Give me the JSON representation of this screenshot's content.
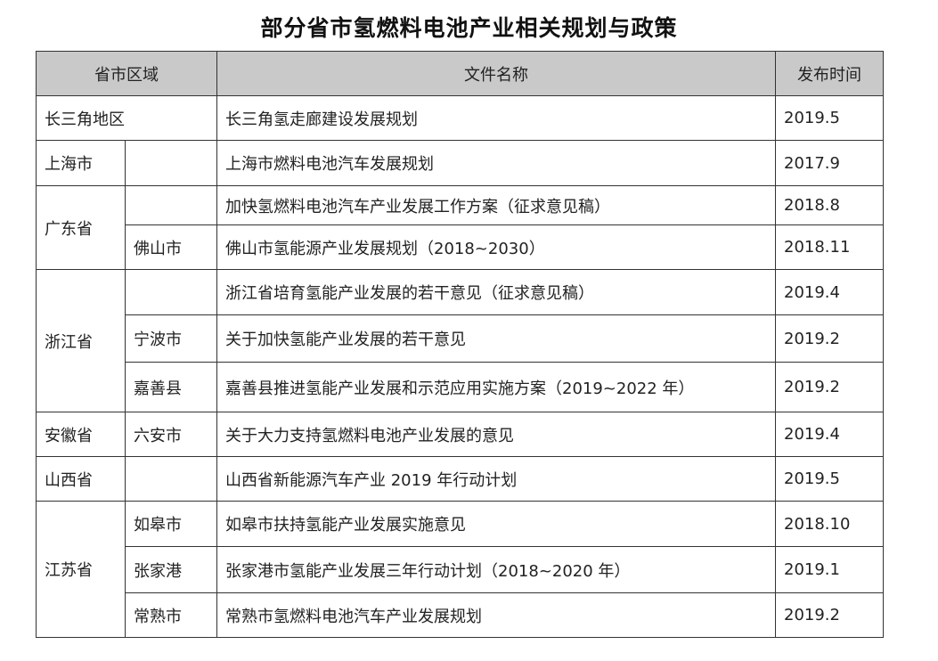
{
  "title": "部分省市氢燃料电池产业相关规划与政策",
  "headers": {
    "region": "省市区域",
    "document": "文件名称",
    "date": "发布时间"
  },
  "rows": [
    {
      "province": "长三角地区",
      "city": "",
      "document": "长三角氢走廊建设发展规划",
      "date": "2019.5"
    },
    {
      "province": "上海市",
      "city": "",
      "document": "上海市燃料电池汽车发展规划",
      "date": "2017.9"
    },
    {
      "province": "广东省",
      "city": "",
      "document": "加快氢燃料电池汽车产业发展工作方案（征求意见稿）",
      "date": "2018.8"
    },
    {
      "province": "",
      "city": "佛山市",
      "document": "佛山市氢能源产业发展规划（2018~2030）",
      "date": "2018.11"
    },
    {
      "province": "浙江省",
      "city": "",
      "document": "浙江省培育氢能产业发展的若干意见（征求意见稿）",
      "date": "2019.4"
    },
    {
      "province": "",
      "city": "宁波市",
      "document": "关于加快氢能产业发展的若干意见",
      "date": "2019.2"
    },
    {
      "province": "",
      "city": "嘉善县",
      "document": "嘉善县推进氢能产业发展和示范应用实施方案（2019~2022 年）",
      "date": "2019.2"
    },
    {
      "province": "安徽省",
      "city": "六安市",
      "document": "关于大力支持氢燃料电池产业发展的意见",
      "date": "2019.4"
    },
    {
      "province": "山西省",
      "city": "",
      "document": "山西省新能源汽车产业 2019 年行动计划",
      "date": "2019.5"
    },
    {
      "province": "江苏省",
      "city": "如皋市",
      "document": "如皋市扶持氢能产业发展实施意见",
      "date": "2018.10"
    },
    {
      "province": "",
      "city": "张家港",
      "document": "张家港市氢能产业发展三年行动计划（2018~2020 年）",
      "date": "2019.1"
    },
    {
      "province": "",
      "city": "常熟市",
      "document": "常熟市氢燃料电池汽车产业发展规划",
      "date": "2019.2"
    }
  ]
}
